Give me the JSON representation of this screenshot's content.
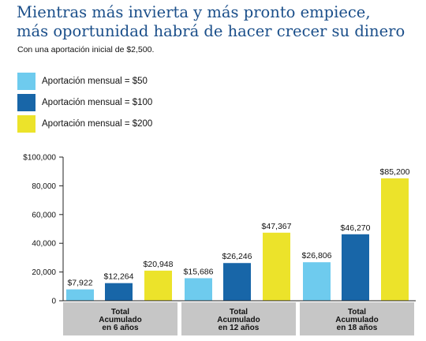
{
  "header": {
    "title_line1": "Mientras más invierta y más pronto empiece,",
    "title_line2": "más oportunidad habrá de hacer crecer su dinero",
    "subtitle": "Con una aportación inicial de $2,500."
  },
  "chart_data": {
    "type": "bar",
    "groups": [
      {
        "label_lines": [
          "Total",
          "Acumulado",
          "en 6 años"
        ]
      },
      {
        "label_lines": [
          "Total",
          "Acumulado",
          "en 12 años"
        ]
      },
      {
        "label_lines": [
          "Total",
          "Acumulado",
          "en 18 años"
        ]
      }
    ],
    "series": [
      {
        "name": "Aportación mensual = $50",
        "color": "#6ecbee",
        "values": [
          7922,
          15686,
          26806
        ],
        "labels": [
          "$7,922",
          "$15,686",
          "$26,806"
        ]
      },
      {
        "name": "Aportación mensual = $100",
        "color": "#1866a8",
        "values": [
          12264,
          26246,
          46270
        ],
        "labels": [
          "$12,264",
          "$26,246",
          "$46,270"
        ]
      },
      {
        "name": "Aportación mensual = $200",
        "color": "#ece32a",
        "values": [
          20948,
          47367,
          85200
        ],
        "labels": [
          "$20,948",
          "$47,367",
          "$85,200"
        ]
      }
    ],
    "yticks": [
      {
        "value": 0,
        "label": "0"
      },
      {
        "value": 20000,
        "label": "20,000"
      },
      {
        "value": 40000,
        "label": "40,000"
      },
      {
        "value": 60000,
        "label": "60,000"
      },
      {
        "value": 80000,
        "label": "80,000"
      },
      {
        "value": 100000,
        "label": "$100,000"
      }
    ],
    "ylim": [
      0,
      100000
    ],
    "grid": false,
    "legend_position": "top-left",
    "colors": {
      "group_label_bg": "#c6c6c6",
      "axis": "#222222"
    }
  }
}
